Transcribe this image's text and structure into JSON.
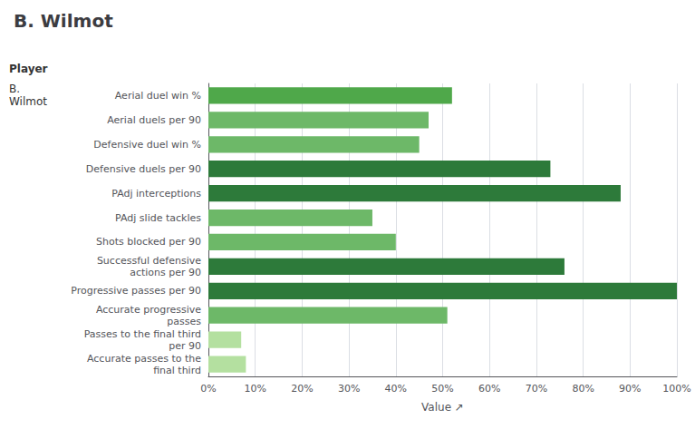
{
  "chart_data": {
    "type": "bar",
    "orientation": "horizontal",
    "title": "B. Wilmot",
    "annotations": [
      "Player",
      "B.\nWilmot"
    ],
    "xlabel": "Value ↗",
    "categories": [
      "Aerial duel win %",
      "Aerial duels per 90",
      "Defensive duel win %",
      "Defensive duels per 90",
      "PAdj interceptions",
      "PAdj slide tackles",
      "Shots blocked per 90",
      "Successful defensive\nactions per 90",
      "Progressive passes per 90",
      "Accurate progressive\npasses",
      "Passes to the final third\nper 90",
      "Accurate passes to the\nfinal third"
    ],
    "values": [
      52,
      47,
      45,
      73,
      88,
      35,
      40,
      76,
      100,
      51,
      7,
      8
    ],
    "colors": [
      "#4fa84a",
      "#6db868",
      "#6db868",
      "#2d7a3a",
      "#2d7a3a",
      "#6db868",
      "#6db868",
      "#2d7a3a",
      "#2d7a3a",
      "#6db868",
      "#b4e0a0",
      "#b4e0a0"
    ],
    "xlim": [
      0,
      100
    ],
    "xticks": [
      {
        "value": 0,
        "label": "0%"
      },
      {
        "value": 10,
        "label": "10%"
      },
      {
        "value": 20,
        "label": "20%"
      },
      {
        "value": 30,
        "label": "30%"
      },
      {
        "value": 40,
        "label": "40%"
      },
      {
        "value": 50,
        "label": "50%"
      },
      {
        "value": 60,
        "label": "60%"
      },
      {
        "value": 70,
        "label": "70%"
      },
      {
        "value": 80,
        "label": "80%"
      },
      {
        "value": 90,
        "label": "90%"
      },
      {
        "value": 100,
        "label": "100%"
      }
    ],
    "grid": true
  }
}
